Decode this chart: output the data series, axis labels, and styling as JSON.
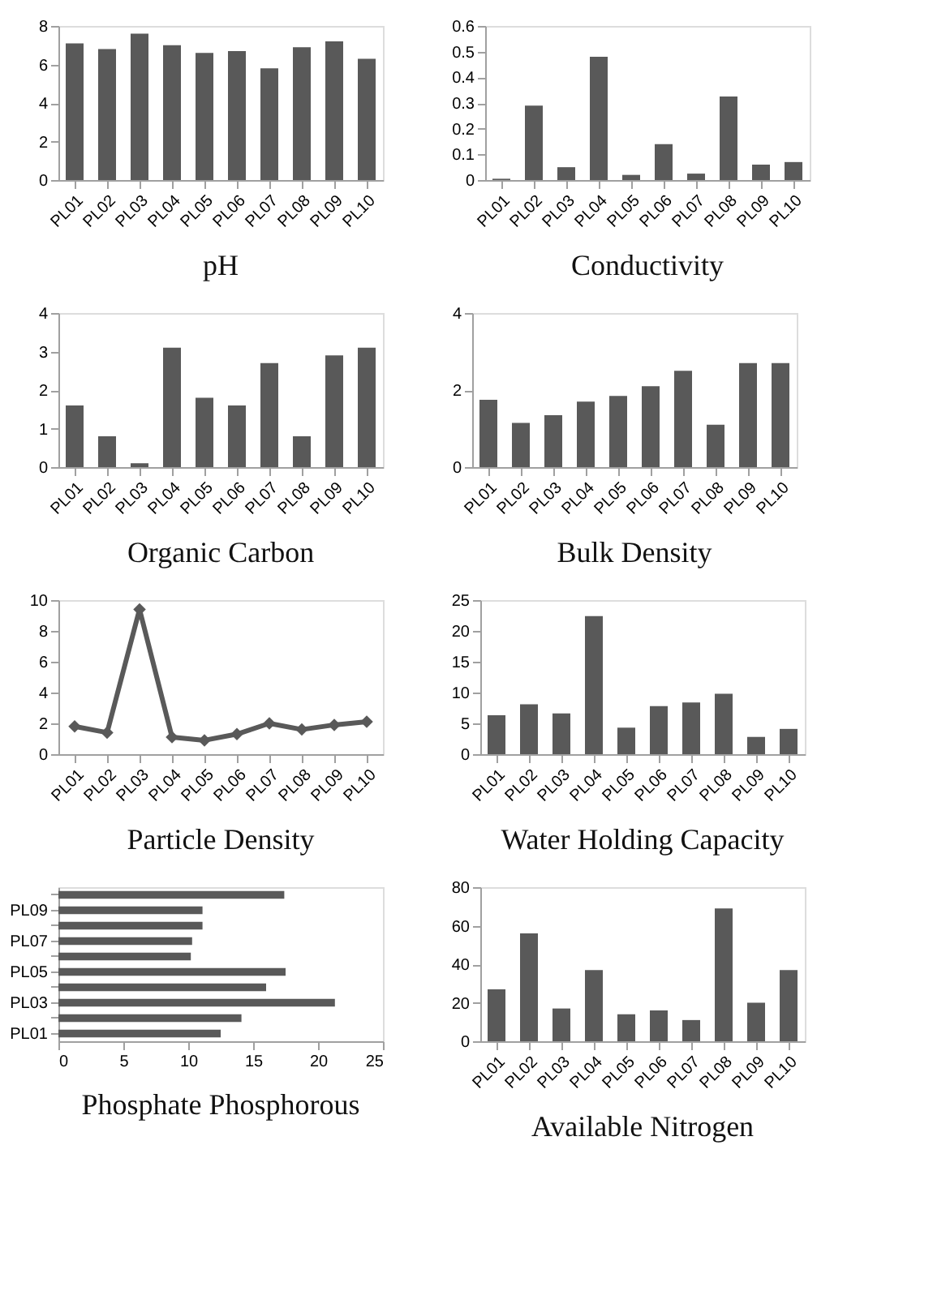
{
  "chart_data": [
    {
      "type": "bar",
      "title": "pH",
      "categories": [
        "PL01",
        "PL02",
        "PL03",
        "PL04",
        "PL05",
        "PL06",
        "PL07",
        "PL08",
        "PL09",
        "PL10"
      ],
      "values": [
        7.1,
        6.8,
        7.6,
        7.0,
        6.6,
        6.7,
        5.8,
        6.9,
        7.2,
        6.3
      ],
      "color": "#595959",
      "ylim": [
        0,
        8
      ],
      "yticks": [
        0,
        2,
        4,
        6,
        8
      ],
      "grid": false
    },
    {
      "type": "bar",
      "title": "Conductivity",
      "categories": [
        "PL01",
        "PL02",
        "PL03",
        "PL04",
        "PL05",
        "PL06",
        "PL07",
        "PL08",
        "PL09",
        "PL10"
      ],
      "values": [
        0.005,
        0.29,
        0.05,
        0.48,
        0.02,
        0.14,
        0.025,
        0.325,
        0.06,
        0.07
      ],
      "color": "#595959",
      "ylim": [
        0,
        0.6
      ],
      "yticks": [
        0,
        0.1,
        0.2,
        0.3,
        0.4,
        0.5,
        0.6
      ],
      "grid": false
    },
    {
      "type": "bar",
      "title": "Organic Carbon",
      "categories": [
        "PL01",
        "PL02",
        "PL03",
        "PL04",
        "PL05",
        "PL06",
        "PL07",
        "PL08",
        "PL09",
        "PL10"
      ],
      "values": [
        1.6,
        0.8,
        0.1,
        3.1,
        1.8,
        1.6,
        2.7,
        0.8,
        2.9,
        3.1
      ],
      "color": "#595959",
      "ylim": [
        0,
        4
      ],
      "yticks": [
        0,
        1,
        2,
        3,
        4
      ],
      "grid": false
    },
    {
      "type": "bar",
      "title": "Bulk Density",
      "categories": [
        "PL01",
        "PL02",
        "PL03",
        "PL04",
        "PL05",
        "PL06",
        "PL07",
        "PL08",
        "PL09",
        "PL10"
      ],
      "values": [
        1.75,
        1.15,
        1.35,
        1.7,
        1.85,
        2.1,
        2.5,
        1.1,
        2.7,
        2.7
      ],
      "color": "#595959",
      "ylim": [
        0,
        4
      ],
      "yticks": [
        0,
        2,
        4
      ],
      "grid": false
    },
    {
      "type": "line",
      "title": "Particle Density",
      "categories": [
        "PL01",
        "PL02",
        "PL03",
        "PL04",
        "PL05",
        "PL06",
        "PL07",
        "PL08",
        "PL09",
        "PL10"
      ],
      "values": [
        1.8,
        1.4,
        9.4,
        1.1,
        0.9,
        1.3,
        2.0,
        1.6,
        1.9,
        2.1
      ],
      "color": "#595959",
      "ylim": [
        0,
        10
      ],
      "yticks": [
        0,
        2,
        4,
        6,
        8,
        10
      ],
      "marker": "diamond",
      "line_style": "solid",
      "grid": false
    },
    {
      "type": "bar",
      "title": "Water Holding Capacity",
      "categories": [
        "PL01",
        "PL02",
        "PL03",
        "PL04",
        "PL05",
        "PL06",
        "PL07",
        "PL08",
        "PL09",
        "PL10"
      ],
      "values": [
        6.3,
        8.1,
        6.6,
        22.4,
        4.3,
        7.8,
        8.4,
        9.8,
        2.8,
        4.1
      ],
      "color": "#595959",
      "ylim": [
        0,
        25
      ],
      "yticks": [
        0,
        5,
        10,
        15,
        20,
        25
      ],
      "grid": false
    },
    {
      "type": "bar",
      "orientation": "horizontal",
      "title": "Phosphate Phosphorous",
      "categories": [
        null,
        "PL09",
        null,
        "PL07",
        null,
        "PL05",
        null,
        "PL03",
        null,
        "PL01"
      ],
      "values": [
        17.4,
        11.1,
        11.1,
        10.3,
        10.2,
        17.5,
        16.0,
        21.3,
        14.1,
        12.5
      ],
      "color": "#595959",
      "xlim": [
        0,
        25
      ],
      "xticks": [
        0,
        5,
        10,
        15,
        20,
        25
      ],
      "grid": false
    },
    {
      "type": "bar",
      "title": "Available Nitrogen",
      "categories": [
        "PL01",
        "PL02",
        "PL03",
        "PL04",
        "PL05",
        "PL06",
        "PL07",
        "PL08",
        "PL09",
        "PL10"
      ],
      "values": [
        27,
        56,
        17,
        37,
        14,
        16,
        11,
        69,
        20,
        37
      ],
      "color": "#595959",
      "ylim": [
        0,
        80
      ],
      "yticks": [
        0,
        20,
        40,
        60,
        80
      ],
      "grid": false
    }
  ]
}
